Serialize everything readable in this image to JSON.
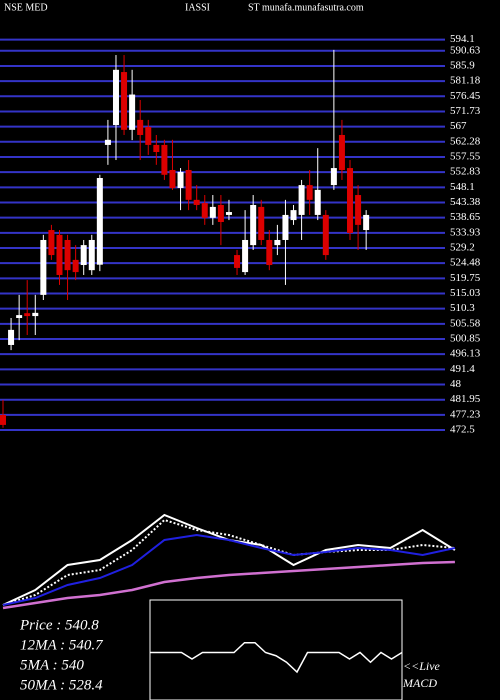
{
  "chart_data": {
    "type": "candlestick",
    "title": [
      "NSE MED",
      "IASSI",
      "ST munafa.munafasutra.com"
    ],
    "open": [
      477.2,
      499.0,
      507.4,
      508.9,
      508.0,
      514.6,
      534.8,
      533.3,
      531.7,
      525.5,
      523.9,
      522.3,
      524.0,
      561.3,
      567.5,
      584.0,
      566.0,
      569.1,
      566.9,
      561.3,
      561.3,
      553.5,
      547.9,
      553.5,
      544.2,
      543.2,
      538.6,
      542.6,
      539.5,
      527.0,
      521.7,
      530.1,
      542.0,
      531.7,
      530.1,
      531.7,
      537.9,
      539.5,
      548.8,
      539.5,
      539.5,
      548.8,
      564.4,
      554.1,
      545.7,
      534.8
    ],
    "high": [
      481.9,
      507.4,
      514.6,
      519.2,
      514.6,
      533.3,
      536.4,
      534.8,
      533.3,
      530.1,
      531.7,
      533.3,
      552.0,
      569.1,
      589.3,
      589.3,
      584.7,
      575.3,
      569.1,
      564.4,
      562.9,
      562.9,
      554.1,
      556.6,
      548.8,
      545.7,
      545.7,
      545.7,
      544.2,
      528.6,
      541.0,
      545.7,
      544.2,
      534.8,
      536.4,
      544.2,
      542.6,
      550.4,
      553.5,
      560.3,
      541.0,
      590.9,
      569.1,
      556.6,
      548.8,
      541.0
    ],
    "low": [
      473.2,
      497.4,
      500.5,
      502.1,
      502.1,
      513.0,
      525.5,
      517.7,
      513.0,
      519.2,
      520.8,
      520.8,
      522.0,
      555.1,
      556.6,
      564.4,
      562.8,
      556.6,
      558.2,
      555.1,
      550.4,
      547.3,
      541.0,
      541.0,
      541.0,
      536.4,
      536.4,
      530.1,
      537.9,
      520.8,
      520.8,
      528.6,
      530.1,
      522.3,
      527.0,
      517.7,
      536.4,
      531.7,
      539.5,
      537.9,
      525.5,
      547.3,
      550.4,
      531.7,
      528.6,
      528.6
    ],
    "close": [
      474.1,
      503.7,
      508.3,
      508.0,
      509.0,
      531.7,
      527.0,
      520.8,
      522.3,
      521.7,
      530.1,
      531.7,
      551.0,
      562.9,
      584.7,
      566.0,
      577.0,
      564.4,
      561.3,
      559.1,
      552.0,
      547.9,
      552.9,
      544.2,
      542.6,
      538.6,
      542.0,
      537.3,
      540.4,
      523.0,
      531.7,
      542.6,
      531.7,
      523.9,
      531.7,
      539.5,
      541.0,
      548.8,
      544.2,
      547.3,
      527.0,
      554.1,
      553.5,
      533.9,
      536.4,
      539.5
    ],
    "ylim": [
      469.4,
      597.1
    ],
    "yticks": [
      594.1,
      590.63,
      585.9,
      581.18,
      576.45,
      571.73,
      567,
      562.28,
      557.55,
      552.83,
      548.1,
      543.38,
      538.65,
      533.93,
      529.2,
      524.48,
      519.75,
      515.03,
      510.3,
      505.58,
      500.85,
      496.13,
      491.4,
      {
        "value": 486.68,
        "label": "48"
      },
      481.95,
      477.23,
      472.5
    ],
    "up_color": "#ffffff",
    "down_color": "#dd0000",
    "grid_color": "#3434c8",
    "moving_averages": {
      "x": [
        0,
        4,
        8,
        12,
        16,
        20,
        24,
        28,
        32,
        36,
        40,
        44,
        48,
        52,
        56
      ],
      "ylim": [
        -10,
        100
      ],
      "series": [
        {
          "color": "#ffffff",
          "dash": false,
          "values": [
            -5,
            10,
            35,
            40,
            60,
            85,
            72,
            60,
            55,
            35,
            50,
            55,
            52,
            70,
            50
          ]
        },
        {
          "color": "#ffffff",
          "dash": true,
          "values": [
            -5,
            5,
            25,
            30,
            50,
            80,
            70,
            65,
            55,
            45,
            48,
            50,
            50,
            55,
            52
          ]
        },
        {
          "color": "#2020e0",
          "dash": false,
          "values": [
            -5,
            2,
            15,
            22,
            35,
            60,
            65,
            60,
            52,
            45,
            48,
            52,
            50,
            45,
            52
          ]
        },
        {
          "color": "#d070d0",
          "dash": false,
          "values": [
            -8,
            -3,
            2,
            5,
            10,
            18,
            22,
            25,
            27,
            29,
            31,
            33,
            35,
            37,
            38
          ]
        }
      ]
    },
    "stats": [
      "Price  :  540.8",
      "12MA : 540.7",
      "5MA : 540",
      "50MA : 528.4"
    ],
    "macd": {
      "labels": [
        "<<Live",
        "MACD"
      ],
      "ylim": [
        -10,
        10
      ],
      "color": "#ffffff",
      "values": [
        0,
        0,
        0,
        0,
        -2,
        0,
        0,
        0,
        0,
        3,
        3,
        0,
        -1,
        -3,
        -6,
        0,
        0,
        0,
        0,
        -2,
        0,
        -3,
        0,
        -2,
        0
      ]
    }
  }
}
